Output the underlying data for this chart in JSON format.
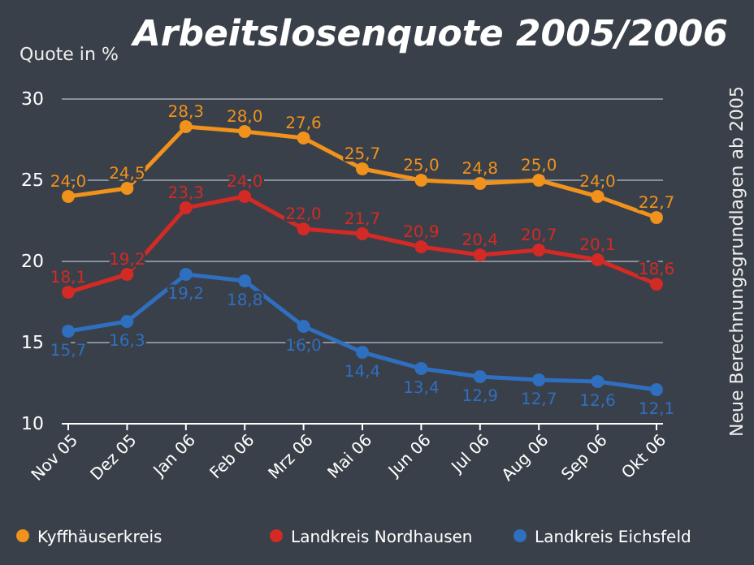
{
  "chart_data": {
    "type": "line",
    "title": "Arbeitslosenquote 2005/2006",
    "ylabel": "Quote in %",
    "annotations": [
      "Neue Berechnungsgrundlagen ab 2005"
    ],
    "categories": [
      "Nov 05",
      "Dez 05",
      "Jan 06",
      "Feb 06",
      "Mrz 06",
      "Mai 06",
      "Jun 06",
      "Jul 06",
      "Aug 06",
      "Sep 06",
      "Okt 06"
    ],
    "series": [
      {
        "name": "Kyffhäuserkreis",
        "color": "#f0921c",
        "values": [
          24.0,
          24.5,
          28.3,
          28.0,
          27.6,
          25.7,
          25.0,
          24.8,
          25.0,
          24.0,
          22.7
        ],
        "value_labels": [
          "24,0",
          "24,5",
          "28,3",
          "28,0",
          "27,6",
          "25,7",
          "25,0",
          "24,8",
          "25,0",
          "24,0",
          "22,7"
        ]
      },
      {
        "name": "Landkreis Nordhausen",
        "color": "#d42a25",
        "values": [
          18.1,
          19.2,
          23.3,
          24.0,
          22.0,
          21.7,
          20.9,
          20.4,
          20.7,
          20.1,
          18.6
        ],
        "value_labels": [
          "18,1",
          "19,2",
          "23,3",
          "24,0",
          "22,0",
          "21,7",
          "20,9",
          "20,4",
          "20,7",
          "20,1",
          "18,6"
        ]
      },
      {
        "name": "Landkreis Eichsfeld",
        "color": "#2f6fc0",
        "values": [
          15.7,
          16.3,
          19.2,
          18.8,
          16.0,
          14.4,
          13.4,
          12.9,
          12.7,
          12.6,
          12.1
        ],
        "value_labels": [
          "15,7",
          "16,3",
          "19,2",
          "18,8",
          "16,0",
          "14,4",
          "13,4",
          "12,9",
          "12,7",
          "12,6",
          "12,1"
        ]
      }
    ],
    "ylim": [
      10,
      30
    ],
    "yticks": [
      10,
      15,
      20,
      25,
      30
    ],
    "grid": "y",
    "legend": "bottom",
    "marker": "circle",
    "line_style": "solid"
  }
}
